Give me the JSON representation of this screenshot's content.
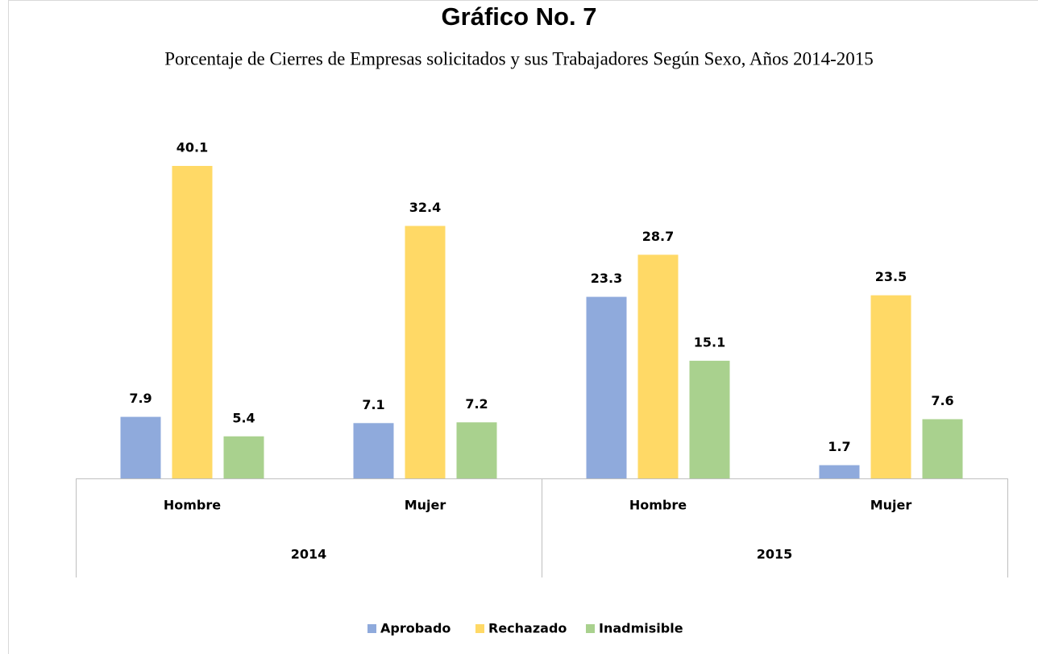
{
  "chart_data": {
    "type": "bar",
    "title": "Gráfico No. 7",
    "subtitle": "Porcentaje de Cierres de Empresas solicitados y sus Trabajadores  Según Sexo, Años 2014-2015",
    "categories": [
      "Hombre",
      "Mujer",
      "Hombre",
      "Mujer"
    ],
    "groups": [
      "2014",
      "2015"
    ],
    "series": [
      {
        "name": "Aprobado",
        "color": "#8faadc",
        "values": [
          7.9,
          7.1,
          23.3,
          1.7
        ]
      },
      {
        "name": "Rechazado",
        "color": "#ffd966",
        "values": [
          40.1,
          32.4,
          28.7,
          23.5
        ]
      },
      {
        "name": "Inadmisible",
        "color": "#a9d18e",
        "values": [
          5.4,
          7.2,
          15.1,
          7.6
        ]
      }
    ],
    "legend": "bottom"
  }
}
